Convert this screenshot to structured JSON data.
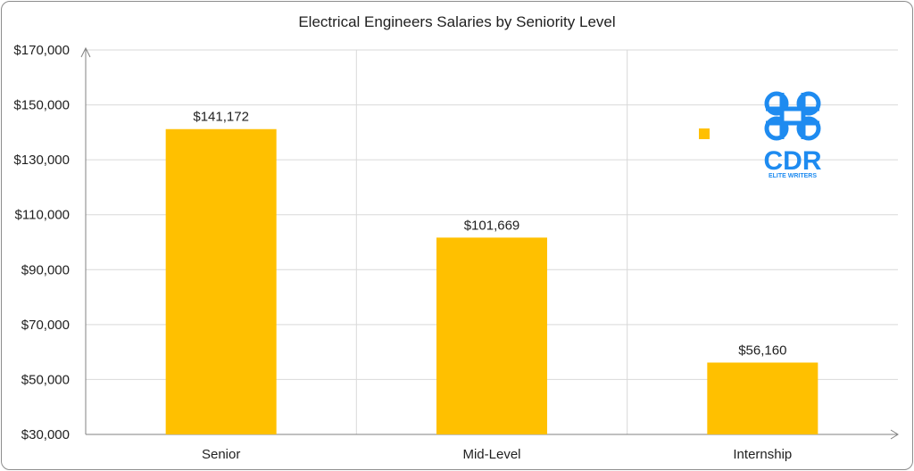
{
  "chart_data": {
    "type": "bar",
    "title": "Electrical Engineers Salaries by Seniority Level",
    "xlabel": "",
    "ylabel": "",
    "categories": [
      "Senior",
      "Mid-Level",
      "Internship"
    ],
    "values": [
      141172,
      101669,
      56160
    ],
    "data_labels": [
      "$141,172",
      "$101,669",
      "$56,160"
    ],
    "ylim": [
      30000,
      170000
    ],
    "y_ticks": [
      30000,
      50000,
      70000,
      90000,
      110000,
      130000,
      150000,
      170000
    ],
    "y_tick_labels": [
      "$30,000",
      "$50,000",
      "$70,000",
      "$90,000",
      "$110,000",
      "$130,000",
      "$150,000",
      "$170,000"
    ],
    "grid": true,
    "legend": "none",
    "bar_color": "#FFC000"
  },
  "logo": {
    "letters": "CDR",
    "tagline": "ELITE WRITERS",
    "icon": "command-key-icon",
    "color": "#1E8BF0"
  }
}
